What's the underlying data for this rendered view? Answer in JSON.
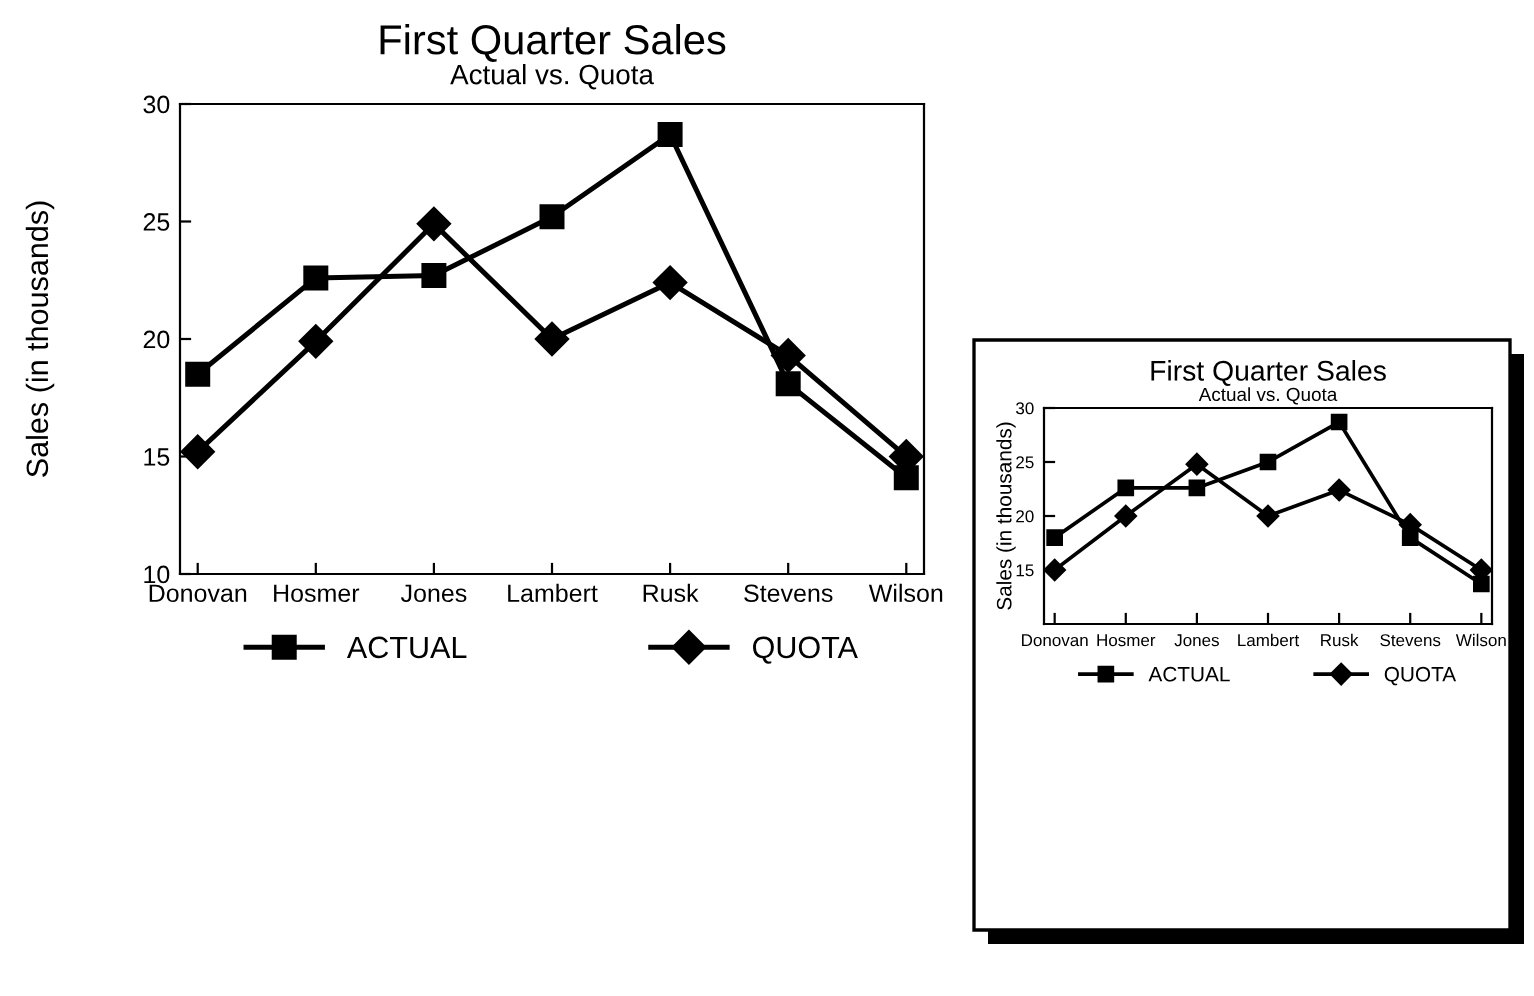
{
  "chart_data": [
    {
      "type": "line",
      "title": "First Quarter Sales",
      "subtitle": "Actual vs. Quota",
      "ylabel": "Sales (in thousands)",
      "categories": [
        "Donovan",
        "Hosmer",
        "Jones",
        "Lambert",
        "Rusk",
        "Stevens",
        "Wilson"
      ],
      "series": [
        {
          "name": "ACTUAL",
          "color": "#000000",
          "marker": "square",
          "values": [
            18.5,
            22.6,
            22.7,
            25.2,
            28.7,
            18.1,
            14.1
          ]
        },
        {
          "name": "QUOTA",
          "color": "#000000",
          "marker": "diamond",
          "values": [
            15.2,
            19.9,
            24.9,
            20.0,
            22.4,
            19.3,
            15.0
          ]
        }
      ],
      "ylim": [
        10,
        30
      ],
      "yticks": [
        10,
        15,
        20,
        25,
        30
      ],
      "grid": false,
      "legend": "bottom"
    },
    {
      "type": "line",
      "title": "First Quarter Sales",
      "subtitle": "Actual vs. Quota",
      "ylabel": "Sales (in thousands)",
      "categories": [
        "Donovan",
        "Hosmer",
        "Jones",
        "Lambert",
        "Rusk",
        "Stevens",
        "Wilson"
      ],
      "series": [
        {
          "name": "ACTUAL",
          "color": "#000000",
          "marker": "square",
          "values": [
            18.0,
            22.6,
            22.6,
            25.0,
            28.7,
            18.0,
            13.7
          ]
        },
        {
          "name": "QUOTA",
          "color": "#000000",
          "marker": "diamond",
          "values": [
            15.0,
            20.0,
            24.8,
            20.0,
            22.4,
            19.2,
            15.0
          ]
        }
      ],
      "ylim": [
        10,
        30
      ],
      "yticks": [
        15,
        20,
        25,
        30
      ],
      "grid": false,
      "legend": "bottom"
    }
  ]
}
